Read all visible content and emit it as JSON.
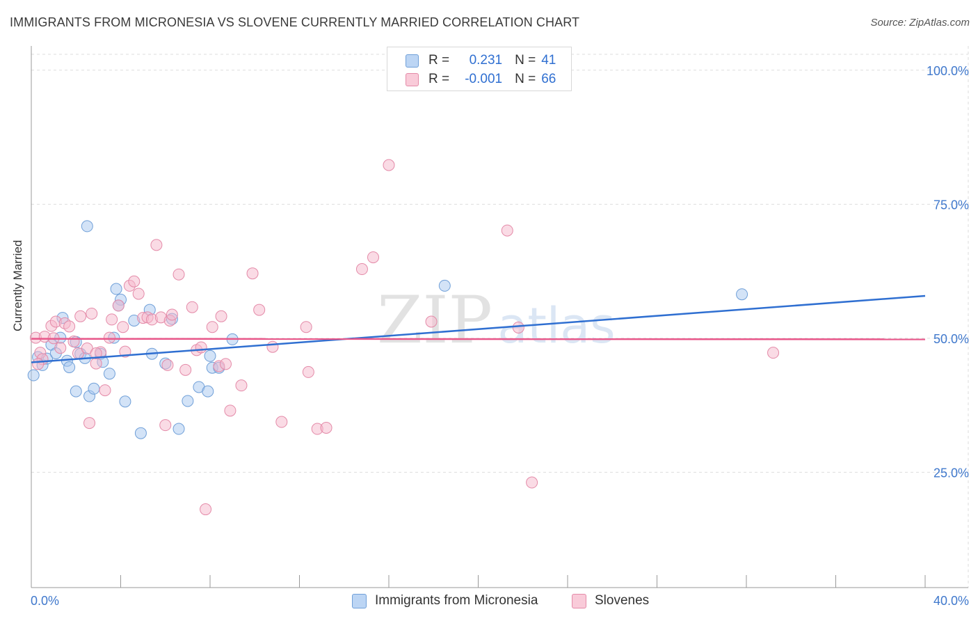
{
  "title": "IMMIGRANTS FROM MICRONESIA VS SLOVENE CURRENTLY MARRIED CORRELATION CHART",
  "source": "Source: ZipAtlas.com",
  "legend_top": {
    "rows": [
      {
        "r_label": "R =",
        "r_value": "0.231",
        "n_label": "N =",
        "n_value": "41"
      },
      {
        "r_label": "R =",
        "r_value": "-0.001",
        "n_label": "N =",
        "n_value": "66"
      }
    ]
  },
  "watermark": {
    "zip": "ZIP",
    "atlas": "atlas"
  },
  "colors": {
    "blue_fill": "#a8c8f0",
    "blue_stroke": "#6f9fd8",
    "blue_line": "#2f6fd1",
    "pink_fill": "#f5b8cb",
    "pink_stroke": "#e48aa8",
    "pink_line": "#e8578a",
    "axis_text": "#3f78cc",
    "grid": "#dddddd"
  },
  "chart_data": {
    "type": "scatter",
    "xlabel": "",
    "ylabel": "Currently Married",
    "x_tick_labels": [
      "0.0%",
      "40.0%"
    ],
    "y_tick_labels": [
      "100.0%",
      "75.0%",
      "50.0%",
      "25.0%"
    ],
    "xlim": [
      0,
      40
    ],
    "ylim": [
      3.5,
      104
    ],
    "y_ticks": [
      100,
      75,
      50,
      25
    ],
    "grid": true,
    "legend_position": "top-center",
    "series": [
      {
        "name": "Immigrants from Micronesia",
        "color": "#a8c8f0",
        "trend": {
          "x": [
            0,
            40
          ],
          "y": [
            45.5,
            57.9
          ]
        },
        "points": [
          [
            0.1,
            43.1
          ],
          [
            0.3,
            46.5
          ],
          [
            0.5,
            45
          ],
          [
            0.7,
            46.2
          ],
          [
            0.9,
            48.8
          ],
          [
            1.1,
            47.2
          ],
          [
            1.3,
            50.1
          ],
          [
            1.4,
            53.8
          ],
          [
            1.6,
            45.8
          ],
          [
            1.7,
            44.6
          ],
          [
            2.0,
            49.3
          ],
          [
            2.0,
            40.1
          ],
          [
            2.2,
            47.1
          ],
          [
            2.4,
            46.3
          ],
          [
            2.6,
            39.2
          ],
          [
            2.8,
            40.6
          ],
          [
            3.1,
            47.1
          ],
          [
            3.2,
            45.6
          ],
          [
            3.5,
            43.4
          ],
          [
            3.7,
            50.1
          ],
          [
            3.8,
            59.2
          ],
          [
            4.0,
            57.2
          ],
          [
            4.2,
            38.2
          ],
          [
            4.6,
            53.3
          ],
          [
            4.9,
            32.3
          ],
          [
            5.3,
            55.3
          ],
          [
            5.4,
            47.1
          ],
          [
            6.0,
            45.3
          ],
          [
            6.3,
            53.6
          ],
          [
            6.6,
            33.1
          ],
          [
            7.0,
            38.3
          ],
          [
            7.5,
            40.9
          ],
          [
            7.9,
            40.1
          ],
          [
            8.0,
            46.7
          ],
          [
            8.1,
            44.5
          ],
          [
            8.4,
            44.5
          ],
          [
            9.0,
            49.8
          ],
          [
            3.9,
            56.1
          ],
          [
            2.5,
            70.9
          ],
          [
            18.5,
            59.8
          ],
          [
            31.8,
            58.2
          ]
        ]
      },
      {
        "name": "Slovenes",
        "color": "#f5b8cb",
        "trend": {
          "x": [
            0,
            40
          ],
          "y": [
            49.9,
            49.8
          ]
        },
        "points": [
          [
            0.2,
            50.1
          ],
          [
            0.4,
            47.3
          ],
          [
            0.5,
            46.1
          ],
          [
            0.6,
            50.3
          ],
          [
            0.9,
            52.3
          ],
          [
            1.1,
            53.1
          ],
          [
            1.3,
            48.2
          ],
          [
            1.5,
            52.8
          ],
          [
            1.7,
            52.2
          ],
          [
            1.9,
            49.4
          ],
          [
            2.1,
            47.2
          ],
          [
            2.2,
            54.1
          ],
          [
            2.5,
            48.1
          ],
          [
            2.6,
            34.2
          ],
          [
            2.7,
            54.6
          ],
          [
            2.9,
            45.3
          ],
          [
            3.1,
            47.4
          ],
          [
            3.3,
            40.3
          ],
          [
            3.5,
            50.1
          ],
          [
            3.6,
            53.5
          ],
          [
            3.9,
            56.1
          ],
          [
            4.1,
            52.1
          ],
          [
            4.2,
            47.5
          ],
          [
            4.4,
            59.8
          ],
          [
            4.6,
            60.6
          ],
          [
            4.8,
            58.3
          ],
          [
            5.0,
            53.8
          ],
          [
            5.2,
            53.9
          ],
          [
            5.4,
            53.5
          ],
          [
            5.6,
            67.4
          ],
          [
            5.8,
            53.9
          ],
          [
            6.0,
            33.8
          ],
          [
            6.1,
            45
          ],
          [
            6.2,
            53.3
          ],
          [
            6.3,
            54.4
          ],
          [
            6.6,
            61.9
          ],
          [
            6.9,
            44.1
          ],
          [
            7.2,
            55.8
          ],
          [
            7.4,
            47.8
          ],
          [
            7.6,
            48.3
          ],
          [
            7.8,
            18.1
          ],
          [
            8.1,
            52.1
          ],
          [
            8.4,
            44.8
          ],
          [
            8.5,
            54.1
          ],
          [
            8.7,
            45.2
          ],
          [
            8.9,
            36.5
          ],
          [
            9.4,
            41.2
          ],
          [
            9.9,
            62.1
          ],
          [
            10.2,
            55.3
          ],
          [
            10.8,
            48.4
          ],
          [
            11.2,
            34.4
          ],
          [
            12.3,
            52.1
          ],
          [
            12.4,
            43.7
          ],
          [
            12.8,
            33.1
          ],
          [
            13.2,
            33.3
          ],
          [
            14.8,
            62.9
          ],
          [
            15.3,
            65.1
          ],
          [
            16.0,
            82.3
          ],
          [
            17.9,
            53.1
          ],
          [
            21.3,
            70.1
          ],
          [
            21.8,
            52
          ],
          [
            22.4,
            23.1
          ],
          [
            33.2,
            47.3
          ],
          [
            2.9,
            47.2
          ],
          [
            1.0,
            50
          ],
          [
            0.3,
            45.2
          ]
        ]
      }
    ]
  },
  "bottom_legend": [
    {
      "label": "Immigrants from Micronesia"
    },
    {
      "label": "Slovenes"
    }
  ]
}
